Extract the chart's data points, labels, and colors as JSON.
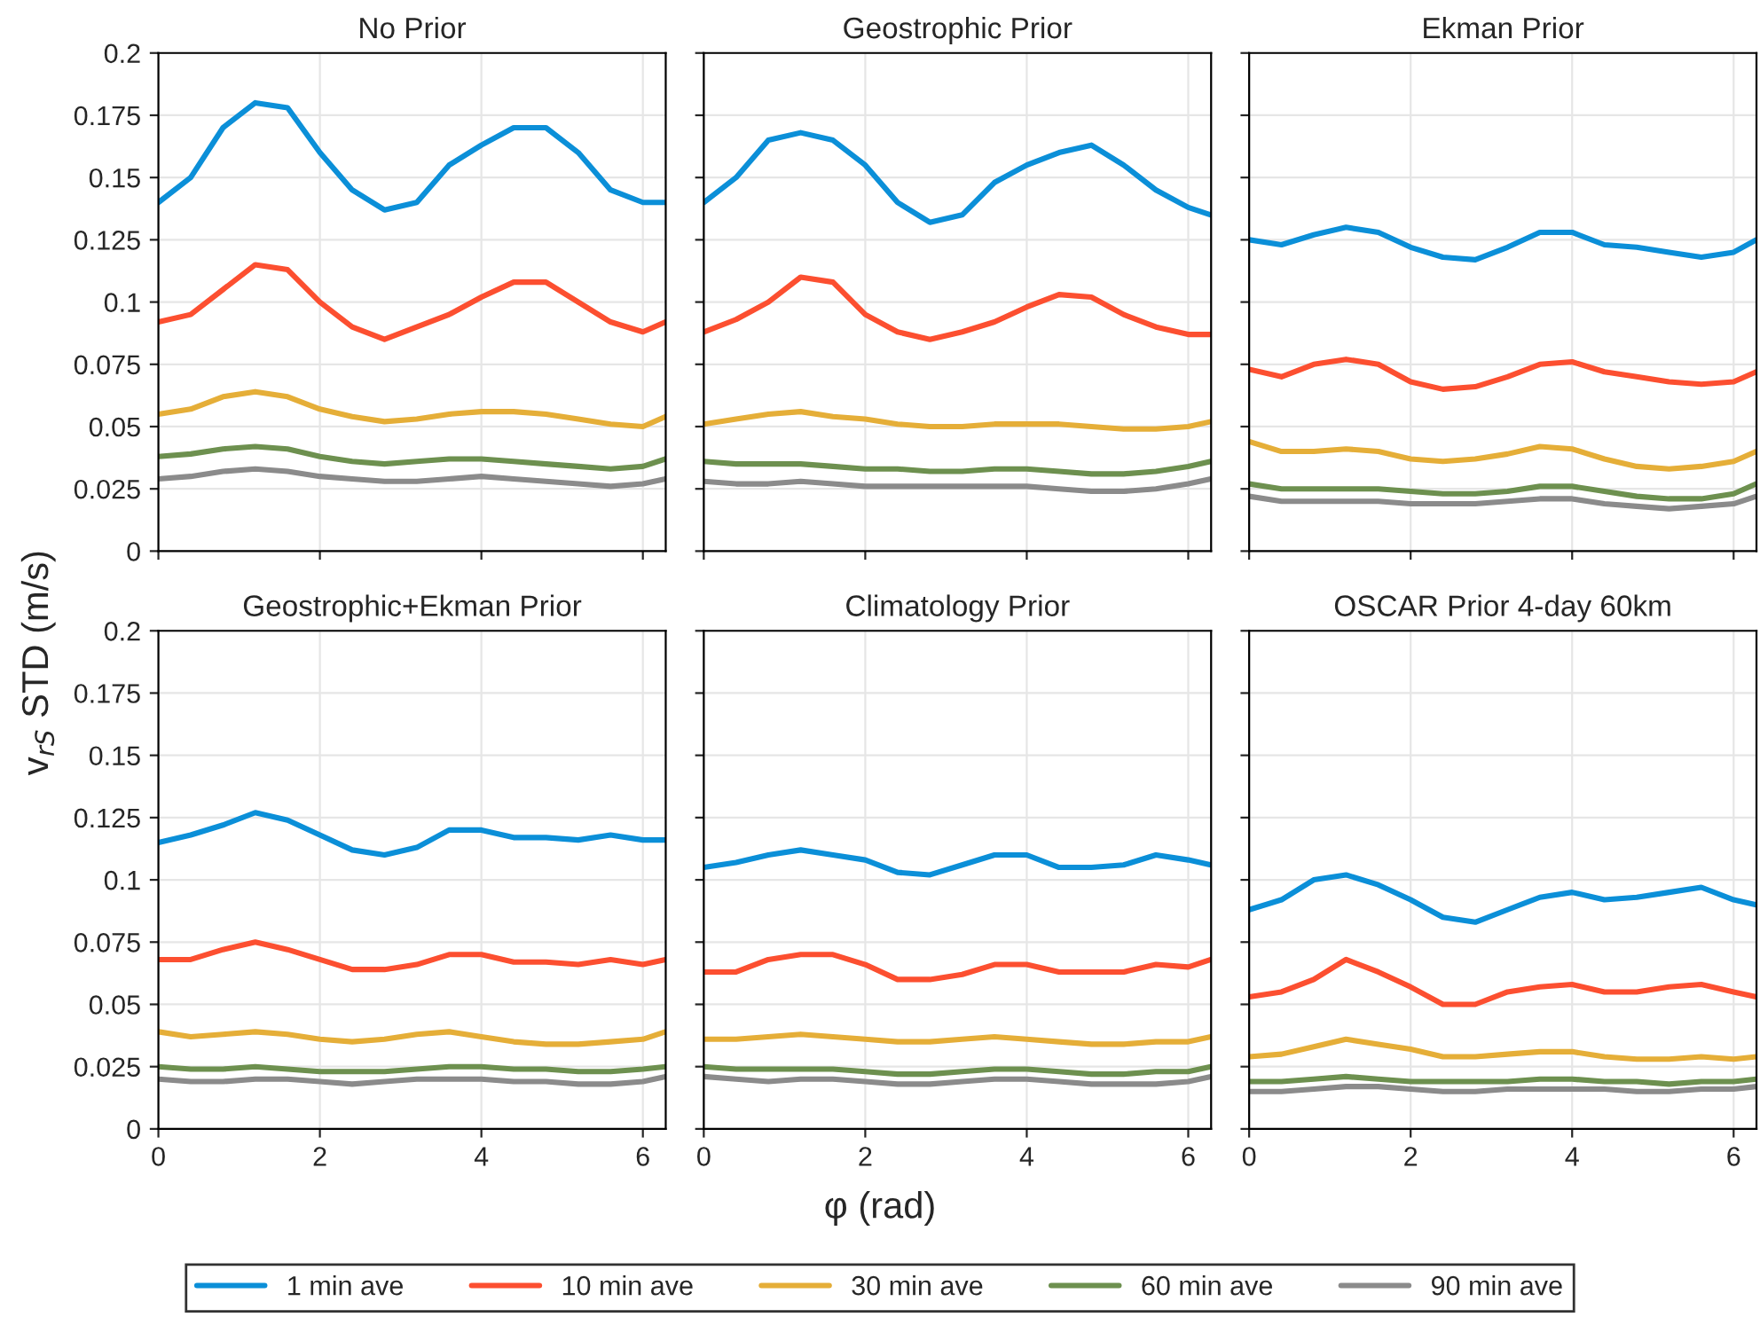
{
  "chart_data": [
    {
      "type": "line",
      "title": "No Prior",
      "ylabel": "v$_{rS}$ STD (m/s)",
      "legend": "bottom",
      "x": [
        0,
        0.4,
        0.8,
        1.2,
        1.6,
        2.0,
        2.4,
        2.8,
        3.2,
        3.6,
        4.0,
        4.4,
        4.8,
        5.2,
        5.6,
        6.0,
        6.28
      ],
      "xlim": [
        0,
        6.283
      ],
      "xticks": [
        0,
        2,
        4,
        6
      ],
      "ylim": [
        0,
        0.2
      ],
      "yticks": [
        0,
        0.025,
        0.05,
        0.075,
        0.1,
        0.125,
        0.15,
        0.175,
        0.2
      ],
      "grid": true,
      "tick_labels": "y",
      "series": [
        {
          "name": "1 min ave",
          "color": "#0b8fd8",
          "values": [
            0.14,
            0.15,
            0.17,
            0.18,
            0.178,
            0.16,
            0.145,
            0.137,
            0.14,
            0.155,
            0.163,
            0.17,
            0.17,
            0.16,
            0.145,
            0.14,
            0.14
          ]
        },
        {
          "name": "10 min ave",
          "color": "#fc4f30",
          "values": [
            0.092,
            0.095,
            0.105,
            0.115,
            0.113,
            0.1,
            0.09,
            0.085,
            0.09,
            0.095,
            0.102,
            0.108,
            0.108,
            0.1,
            0.092,
            0.088,
            0.092
          ]
        },
        {
          "name": "30 min ave",
          "color": "#e5ae38",
          "values": [
            0.055,
            0.057,
            0.062,
            0.064,
            0.062,
            0.057,
            0.054,
            0.052,
            0.053,
            0.055,
            0.056,
            0.056,
            0.055,
            0.053,
            0.051,
            0.05,
            0.054
          ]
        },
        {
          "name": "60 min ave",
          "color": "#6d904f",
          "values": [
            0.038,
            0.039,
            0.041,
            0.042,
            0.041,
            0.038,
            0.036,
            0.035,
            0.036,
            0.037,
            0.037,
            0.036,
            0.035,
            0.034,
            0.033,
            0.034,
            0.037
          ]
        },
        {
          "name": "90 min ave",
          "color": "#8b8b8b",
          "values": [
            0.029,
            0.03,
            0.032,
            0.033,
            0.032,
            0.03,
            0.029,
            0.028,
            0.028,
            0.029,
            0.03,
            0.029,
            0.028,
            0.027,
            0.026,
            0.027,
            0.029
          ]
        }
      ]
    },
    {
      "type": "line",
      "title": "Geostrophic Prior",
      "x": [
        0,
        0.4,
        0.8,
        1.2,
        1.6,
        2.0,
        2.4,
        2.8,
        3.2,
        3.6,
        4.0,
        4.4,
        4.8,
        5.2,
        5.6,
        6.0,
        6.28
      ],
      "xlim": [
        0,
        6.283
      ],
      "xticks": [
        0,
        2,
        4,
        6
      ],
      "ylim": [
        0,
        0.2
      ],
      "yticks": [
        0,
        0.025,
        0.05,
        0.075,
        0.1,
        0.125,
        0.15,
        0.175,
        0.2
      ],
      "grid": true,
      "tick_labels": false,
      "series": [
        {
          "color": "#0b8fd8",
          "values": [
            0.14,
            0.15,
            0.165,
            0.168,
            0.165,
            0.155,
            0.14,
            0.132,
            0.135,
            0.148,
            0.155,
            0.16,
            0.163,
            0.155,
            0.145,
            0.138,
            0.135
          ]
        },
        {
          "color": "#fc4f30",
          "values": [
            0.088,
            0.093,
            0.1,
            0.11,
            0.108,
            0.095,
            0.088,
            0.085,
            0.088,
            0.092,
            0.098,
            0.103,
            0.102,
            0.095,
            0.09,
            0.087,
            0.087
          ]
        },
        {
          "color": "#e5ae38",
          "values": [
            0.051,
            0.053,
            0.055,
            0.056,
            0.054,
            0.053,
            0.051,
            0.05,
            0.05,
            0.051,
            0.051,
            0.051,
            0.05,
            0.049,
            0.049,
            0.05,
            0.052
          ]
        },
        {
          "color": "#6d904f",
          "values": [
            0.036,
            0.035,
            0.035,
            0.035,
            0.034,
            0.033,
            0.033,
            0.032,
            0.032,
            0.033,
            0.033,
            0.032,
            0.031,
            0.031,
            0.032,
            0.034,
            0.036
          ]
        },
        {
          "color": "#8b8b8b",
          "values": [
            0.028,
            0.027,
            0.027,
            0.028,
            0.027,
            0.026,
            0.026,
            0.026,
            0.026,
            0.026,
            0.026,
            0.025,
            0.024,
            0.024,
            0.025,
            0.027,
            0.029
          ]
        }
      ]
    },
    {
      "type": "line",
      "title": "Ekman Prior",
      "x": [
        0,
        0.4,
        0.8,
        1.2,
        1.6,
        2.0,
        2.4,
        2.8,
        3.2,
        3.6,
        4.0,
        4.4,
        4.8,
        5.2,
        5.6,
        6.0,
        6.28
      ],
      "xlim": [
        0,
        6.283
      ],
      "xticks": [
        0,
        2,
        4,
        6
      ],
      "ylim": [
        0,
        0.2
      ],
      "yticks": [
        0,
        0.025,
        0.05,
        0.075,
        0.1,
        0.125,
        0.15,
        0.175,
        0.2
      ],
      "grid": true,
      "tick_labels": false,
      "series": [
        {
          "color": "#0b8fd8",
          "values": [
            0.125,
            0.123,
            0.127,
            0.13,
            0.128,
            0.122,
            0.118,
            0.117,
            0.122,
            0.128,
            0.128,
            0.123,
            0.122,
            0.12,
            0.118,
            0.12,
            0.125
          ]
        },
        {
          "color": "#fc4f30",
          "values": [
            0.073,
            0.07,
            0.075,
            0.077,
            0.075,
            0.068,
            0.065,
            0.066,
            0.07,
            0.075,
            0.076,
            0.072,
            0.07,
            0.068,
            0.067,
            0.068,
            0.072
          ]
        },
        {
          "color": "#e5ae38",
          "values": [
            0.044,
            0.04,
            0.04,
            0.041,
            0.04,
            0.037,
            0.036,
            0.037,
            0.039,
            0.042,
            0.041,
            0.037,
            0.034,
            0.033,
            0.034,
            0.036,
            0.04
          ]
        },
        {
          "color": "#6d904f",
          "values": [
            0.027,
            0.025,
            0.025,
            0.025,
            0.025,
            0.024,
            0.023,
            0.023,
            0.024,
            0.026,
            0.026,
            0.024,
            0.022,
            0.021,
            0.021,
            0.023,
            0.027
          ]
        },
        {
          "color": "#8b8b8b",
          "values": [
            0.022,
            0.02,
            0.02,
            0.02,
            0.02,
            0.019,
            0.019,
            0.019,
            0.02,
            0.021,
            0.021,
            0.019,
            0.018,
            0.017,
            0.018,
            0.019,
            0.022
          ]
        }
      ]
    },
    {
      "type": "line",
      "title": "Geostrophic+Ekman Prior",
      "x": [
        0,
        0.4,
        0.8,
        1.2,
        1.6,
        2.0,
        2.4,
        2.8,
        3.2,
        3.6,
        4.0,
        4.4,
        4.8,
        5.2,
        5.6,
        6.0,
        6.28
      ],
      "xlim": [
        0,
        6.283
      ],
      "xticks": [
        0,
        2,
        4,
        6
      ],
      "ylim": [
        0,
        0.2
      ],
      "yticks": [
        0,
        0.025,
        0.05,
        0.075,
        0.1,
        0.125,
        0.15,
        0.175,
        0.2
      ],
      "grid": true,
      "series": [
        {
          "color": "#0b8fd8",
          "values": [
            0.115,
            0.118,
            0.122,
            0.127,
            0.124,
            0.118,
            0.112,
            0.11,
            0.113,
            0.12,
            0.12,
            0.117,
            0.117,
            0.116,
            0.118,
            0.116,
            0.116
          ]
        },
        {
          "color": "#fc4f30",
          "values": [
            0.068,
            0.068,
            0.072,
            0.075,
            0.072,
            0.068,
            0.064,
            0.064,
            0.066,
            0.07,
            0.07,
            0.067,
            0.067,
            0.066,
            0.068,
            0.066,
            0.068
          ]
        },
        {
          "color": "#e5ae38",
          "values": [
            0.039,
            0.037,
            0.038,
            0.039,
            0.038,
            0.036,
            0.035,
            0.036,
            0.038,
            0.039,
            0.037,
            0.035,
            0.034,
            0.034,
            0.035,
            0.036,
            0.039
          ]
        },
        {
          "color": "#6d904f",
          "values": [
            0.025,
            0.024,
            0.024,
            0.025,
            0.024,
            0.023,
            0.023,
            0.023,
            0.024,
            0.025,
            0.025,
            0.024,
            0.024,
            0.023,
            0.023,
            0.024,
            0.025
          ]
        },
        {
          "color": "#8b8b8b",
          "values": [
            0.02,
            0.019,
            0.019,
            0.02,
            0.02,
            0.019,
            0.018,
            0.019,
            0.02,
            0.02,
            0.02,
            0.019,
            0.019,
            0.018,
            0.018,
            0.019,
            0.021
          ]
        }
      ]
    },
    {
      "type": "line",
      "title": "Climatology Prior",
      "xlabel": "φ (rad)",
      "x": [
        0,
        0.4,
        0.8,
        1.2,
        1.6,
        2.0,
        2.4,
        2.8,
        3.2,
        3.6,
        4.0,
        4.4,
        4.8,
        5.2,
        5.6,
        6.0,
        6.28
      ],
      "xlim": [
        0,
        6.283
      ],
      "xticks": [
        0,
        2,
        4,
        6
      ],
      "ylim": [
        0,
        0.2
      ],
      "yticks": [
        0,
        0.025,
        0.05,
        0.075,
        0.1,
        0.125,
        0.15,
        0.175,
        0.2
      ],
      "grid": true,
      "tick_labels": "x",
      "series": [
        {
          "color": "#0b8fd8",
          "values": [
            0.105,
            0.107,
            0.11,
            0.112,
            0.11,
            0.108,
            0.103,
            0.102,
            0.106,
            0.11,
            0.11,
            0.105,
            0.105,
            0.106,
            0.11,
            0.108,
            0.106
          ]
        },
        {
          "color": "#fc4f30",
          "values": [
            0.063,
            0.063,
            0.068,
            0.07,
            0.07,
            0.066,
            0.06,
            0.06,
            0.062,
            0.066,
            0.066,
            0.063,
            0.063,
            0.063,
            0.066,
            0.065,
            0.068
          ]
        },
        {
          "color": "#e5ae38",
          "values": [
            0.036,
            0.036,
            0.037,
            0.038,
            0.037,
            0.036,
            0.035,
            0.035,
            0.036,
            0.037,
            0.036,
            0.035,
            0.034,
            0.034,
            0.035,
            0.035,
            0.037
          ]
        },
        {
          "color": "#6d904f",
          "values": [
            0.025,
            0.024,
            0.024,
            0.024,
            0.024,
            0.023,
            0.022,
            0.022,
            0.023,
            0.024,
            0.024,
            0.023,
            0.022,
            0.022,
            0.023,
            0.023,
            0.025
          ]
        },
        {
          "color": "#8b8b8b",
          "values": [
            0.021,
            0.02,
            0.019,
            0.02,
            0.02,
            0.019,
            0.018,
            0.018,
            0.019,
            0.02,
            0.02,
            0.019,
            0.018,
            0.018,
            0.018,
            0.019,
            0.021
          ]
        }
      ]
    },
    {
      "type": "line",
      "title": "OSCAR Prior 4-day 60km",
      "x": [
        0,
        0.4,
        0.8,
        1.2,
        1.6,
        2.0,
        2.4,
        2.8,
        3.2,
        3.6,
        4.0,
        4.4,
        4.8,
        5.2,
        5.6,
        6.0,
        6.28
      ],
      "xlim": [
        0,
        6.283
      ],
      "xticks": [
        0,
        2,
        4,
        6
      ],
      "ylim": [
        0,
        0.2
      ],
      "yticks": [
        0,
        0.025,
        0.05,
        0.075,
        0.1,
        0.125,
        0.15,
        0.175,
        0.2
      ],
      "grid": true,
      "tick_labels": "x",
      "series": [
        {
          "color": "#0b8fd8",
          "values": [
            0.088,
            0.092,
            0.1,
            0.102,
            0.098,
            0.092,
            0.085,
            0.083,
            0.088,
            0.093,
            0.095,
            0.092,
            0.093,
            0.095,
            0.097,
            0.092,
            0.09
          ]
        },
        {
          "color": "#fc4f30",
          "values": [
            0.053,
            0.055,
            0.06,
            0.068,
            0.063,
            0.057,
            0.05,
            0.05,
            0.055,
            0.057,
            0.058,
            0.055,
            0.055,
            0.057,
            0.058,
            0.055,
            0.053
          ]
        },
        {
          "color": "#e5ae38",
          "values": [
            0.029,
            0.03,
            0.033,
            0.036,
            0.034,
            0.032,
            0.029,
            0.029,
            0.03,
            0.031,
            0.031,
            0.029,
            0.028,
            0.028,
            0.029,
            0.028,
            0.029
          ]
        },
        {
          "color": "#6d904f",
          "values": [
            0.019,
            0.019,
            0.02,
            0.021,
            0.02,
            0.019,
            0.019,
            0.019,
            0.019,
            0.02,
            0.02,
            0.019,
            0.019,
            0.018,
            0.019,
            0.019,
            0.02
          ]
        },
        {
          "color": "#8b8b8b",
          "values": [
            0.015,
            0.015,
            0.016,
            0.017,
            0.017,
            0.016,
            0.015,
            0.015,
            0.016,
            0.016,
            0.016,
            0.016,
            0.015,
            0.015,
            0.016,
            0.016,
            0.017
          ]
        }
      ]
    }
  ]
}
